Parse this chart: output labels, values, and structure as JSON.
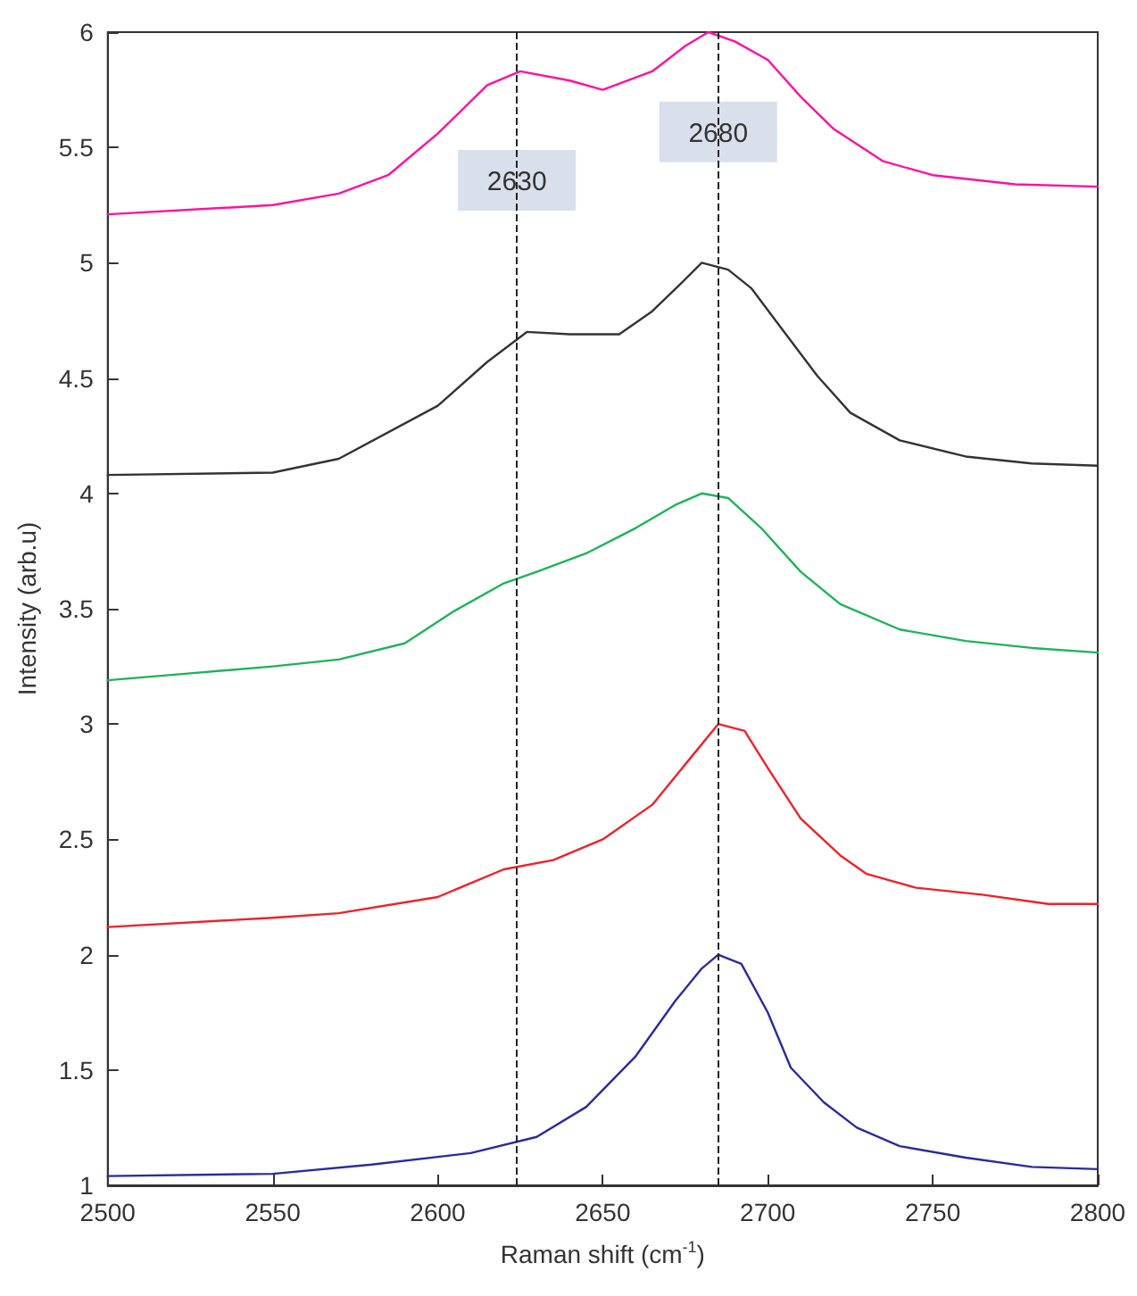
{
  "chart_data": {
    "type": "line",
    "xlabel": "Raman shift (cm$^{-1}$)",
    "ylabel": "Intensity (arb.u)",
    "xlim": [
      2500,
      2800
    ],
    "xticks": [
      2500,
      2550,
      2600,
      2650,
      2700,
      2750,
      2800
    ],
    "ylim": [
      1,
      6
    ],
    "yticks": [
      1,
      1.5,
      2,
      2.5,
      3,
      3.5,
      4,
      4.5,
      5,
      5.5,
      6
    ],
    "marker": "none",
    "line_style": "solid",
    "series": [
      {
        "color": "#ff10a0",
        "x": [
          2500,
          2550,
          2570,
          2585,
          2600,
          2615,
          2625,
          2640,
          2650,
          2665,
          2675,
          2682,
          2690,
          2700,
          2710,
          2720,
          2735,
          2750,
          2775,
          2800
        ],
        "values": [
          5.21,
          5.25,
          5.3,
          5.38,
          5.56,
          5.77,
          5.83,
          5.79,
          5.75,
          5.83,
          5.94,
          6.0,
          5.96,
          5.88,
          5.72,
          5.58,
          5.44,
          5.38,
          5.34,
          5.33
        ]
      },
      {
        "color": "#333333",
        "x": [
          2500,
          2550,
          2570,
          2600,
          2615,
          2627,
          2640,
          2655,
          2665,
          2673,
          2680,
          2688,
          2695,
          2705,
          2715,
          2725,
          2740,
          2760,
          2780,
          2800
        ],
        "values": [
          4.08,
          4.09,
          4.15,
          4.38,
          4.57,
          4.7,
          4.69,
          4.69,
          4.79,
          4.9,
          5.0,
          4.97,
          4.89,
          4.7,
          4.51,
          4.35,
          4.23,
          4.16,
          4.13,
          4.12
        ]
      },
      {
        "color": "#1db35a",
        "x": [
          2500,
          2525,
          2550,
          2570,
          2590,
          2605,
          2620,
          2630,
          2645,
          2660,
          2672,
          2680,
          2688,
          2698,
          2710,
          2722,
          2740,
          2760,
          2780,
          2800
        ],
        "values": [
          3.19,
          3.22,
          3.25,
          3.28,
          3.35,
          3.49,
          3.61,
          3.66,
          3.74,
          3.85,
          3.95,
          4.0,
          3.98,
          3.85,
          3.66,
          3.52,
          3.41,
          3.36,
          3.33,
          3.31
        ]
      },
      {
        "color": "#f0202a",
        "x": [
          2500,
          2550,
          2570,
          2600,
          2620,
          2635,
          2650,
          2665,
          2677,
          2685,
          2693,
          2700,
          2710,
          2722,
          2730,
          2745,
          2765,
          2785,
          2800
        ],
        "values": [
          2.12,
          2.16,
          2.18,
          2.25,
          2.37,
          2.41,
          2.5,
          2.65,
          2.86,
          3.0,
          2.97,
          2.81,
          2.59,
          2.43,
          2.35,
          2.29,
          2.26,
          2.22,
          2.22
        ]
      },
      {
        "color": "#2a2aa0",
        "x": [
          2500,
          2550,
          2580,
          2610,
          2630,
          2645,
          2660,
          2672,
          2680,
          2685,
          2692,
          2700,
          2707,
          2717,
          2727,
          2740,
          2760,
          2780,
          2800
        ],
        "values": [
          1.04,
          1.05,
          1.09,
          1.14,
          1.21,
          1.34,
          1.56,
          1.8,
          1.94,
          2.0,
          1.96,
          1.75,
          1.51,
          1.36,
          1.25,
          1.17,
          1.12,
          1.08,
          1.07
        ]
      }
    ],
    "ref_lines": [
      {
        "axis": "x",
        "value": 2624,
        "color": "#222222",
        "line_style": "dashed"
      },
      {
        "axis": "x",
        "value": 2685,
        "color": "#222222",
        "line_style": "dashed"
      }
    ],
    "annotations": [
      {
        "text": "2630",
        "x": 2624,
        "y": 5.35
      },
      {
        "text": "2680",
        "x": 2685,
        "y": 5.56
      }
    ]
  }
}
